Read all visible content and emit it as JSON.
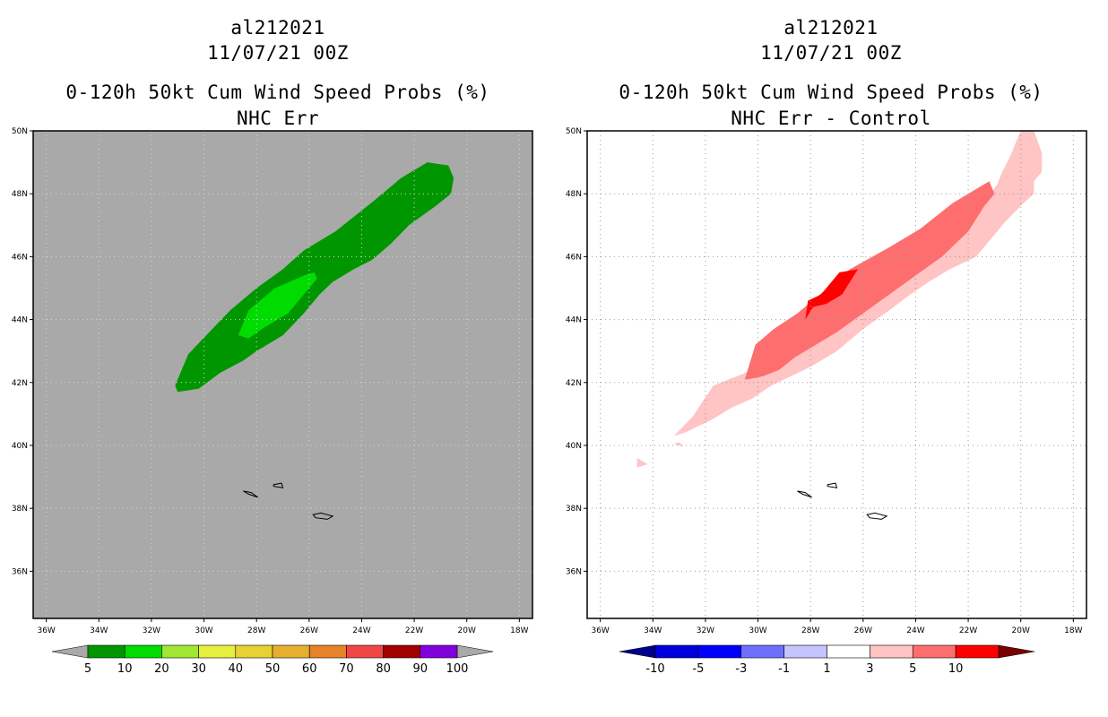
{
  "colors": {
    "background": "#ffffff",
    "map_gray": "#a9a9a9",
    "prob_dark_green": "#009600",
    "prob_bright_green": "#00dc00",
    "diff_light_pink": "#ffc4c4",
    "diff_salmon": "#ff6e6e",
    "diff_red": "#ff0000",
    "diff_dark_red": "#b40000"
  },
  "chart_data": [
    {
      "type": "heatmap",
      "storm_id": "al212021",
      "datetime": "11/07/21 00Z",
      "title": "0-120h 50kt Cum Wind Speed Probs (%)",
      "subtitle": "NHC Err",
      "x_ticks": [
        "36W",
        "34W",
        "32W",
        "30W",
        "28W",
        "26W",
        "24W",
        "22W",
        "20W",
        "18W"
      ],
      "y_ticks": [
        "36N",
        "38N",
        "40N",
        "42N",
        "44N",
        "46N",
        "48N",
        "50N"
      ],
      "xlim_deg_w": [
        36.5,
        17.5
      ],
      "ylim_deg_n": [
        34.5,
        50
      ],
      "grid": false,
      "colorbar": {
        "labels": [
          "5",
          "10",
          "20",
          "30",
          "40",
          "50",
          "60",
          "70",
          "80",
          "90",
          "100"
        ],
        "colors": [
          "#009600",
          "#00dc00",
          "#a0e632",
          "#e6f03c",
          "#e6d232",
          "#e6af2d",
          "#e68228",
          "#f04646",
          "#a00000",
          "#8200dc"
        ],
        "under_color": "#a9a9a9",
        "over_color": "#a9a9a9"
      },
      "contours": [
        {
          "level": "5-10",
          "color": "#009600",
          "lon": [
            31.1,
            30.6,
            29.8,
            29.0,
            28.0,
            27.0,
            26.2,
            25.0,
            23.5,
            22.5,
            21.5,
            20.7,
            20.5,
            20.6,
            21.2,
            22.2,
            22.9,
            23.6,
            24.3,
            25.1,
            25.6,
            26.2,
            27.0,
            28.0,
            28.5,
            29.4,
            30.2,
            31.0
          ],
          "lat": [
            41.9,
            42.9,
            43.6,
            44.3,
            45.0,
            45.6,
            46.2,
            46.8,
            47.8,
            48.5,
            49.0,
            48.9,
            48.5,
            48.0,
            47.6,
            47.0,
            46.4,
            45.9,
            45.6,
            45.2,
            44.8,
            44.2,
            43.5,
            43.0,
            42.7,
            42.3,
            41.8,
            41.7
          ]
        },
        {
          "level": "10-20",
          "color": "#00dc00",
          "lon": [
            28.7,
            28.3,
            27.3,
            26.2,
            25.8,
            25.7,
            26.2,
            26.8,
            27.8,
            28.3
          ],
          "lat": [
            43.5,
            44.3,
            45.0,
            45.4,
            45.5,
            45.3,
            44.8,
            44.2,
            43.7,
            43.4
          ]
        }
      ],
      "coastlines": [
        {
          "lon": [
            28.5,
            28.3,
            27.95,
            28.2,
            28.5
          ],
          "lat": [
            38.55,
            38.45,
            38.35,
            38.5,
            38.55
          ]
        },
        {
          "lon": [
            27.35,
            27.05,
            27.0,
            27.35
          ],
          "lat": [
            38.75,
            38.8,
            38.65,
            38.7
          ]
        },
        {
          "lon": [
            25.85,
            25.55,
            25.1,
            25.3,
            25.75,
            25.85
          ],
          "lat": [
            37.8,
            37.85,
            37.75,
            37.65,
            37.7,
            37.8
          ]
        }
      ]
    },
    {
      "type": "heatmap",
      "storm_id": "al212021",
      "datetime": "11/07/21 00Z",
      "title": "0-120h 50kt Cum Wind Speed Probs (%)",
      "subtitle": "NHC Err - Control",
      "x_ticks": [
        "36W",
        "34W",
        "32W",
        "30W",
        "28W",
        "26W",
        "24W",
        "22W",
        "20W",
        "18W"
      ],
      "y_ticks": [
        "36N",
        "38N",
        "40N",
        "42N",
        "44N",
        "46N",
        "48N",
        "50N"
      ],
      "xlim_deg_w": [
        36.5,
        17.5
      ],
      "ylim_deg_n": [
        34.5,
        50
      ],
      "grid": true,
      "colorbar": {
        "labels": [
          "-10",
          "-5",
          "-3",
          "-1",
          "1",
          "3",
          "5",
          "10"
        ],
        "colors": [
          "#0000dc",
          "#0000ff",
          "#6e6eff",
          "#c4c4ff",
          "#ffffff",
          "#ffc4c4",
          "#ff6e6e",
          "#ff0000"
        ],
        "under_color": "#00008c",
        "over_color": "#780000"
      },
      "contours": [
        {
          "level": "1-3",
          "color": "#ffc4c4",
          "lon": [
            33.2,
            32.5,
            31.7,
            30.5,
            29.8,
            29.0,
            28.0,
            27.0,
            25.5,
            24.5,
            23.8,
            23.2,
            22.7,
            21.9,
            21.3,
            20.9,
            20.7,
            20.4,
            20.2,
            20.0,
            19.5,
            19.2,
            19.2,
            19.5,
            19.5,
            19.9,
            20.6,
            21.2,
            21.7,
            22.2,
            22.7,
            23.1,
            23.5,
            24.2,
            25.0,
            26.0,
            27.0,
            28.0,
            29.0,
            29.5,
            30.2,
            31.0,
            31.8,
            32.3,
            32.8,
            33.2
          ],
          "lat": [
            40.3,
            40.9,
            41.9,
            42.3,
            42.7,
            43.4,
            44.0,
            44.5,
            45.0,
            45.2,
            45.6,
            46.2,
            46.8,
            47.3,
            47.8,
            48.3,
            48.7,
            49.2,
            49.6,
            50.0,
            50.0,
            49.3,
            48.7,
            48.4,
            48.0,
            47.7,
            47.1,
            46.5,
            46.0,
            45.8,
            45.6,
            45.4,
            45.2,
            44.8,
            44.3,
            43.7,
            43.0,
            42.5,
            42.1,
            41.9,
            41.5,
            41.2,
            40.8,
            40.6,
            40.4,
            40.3
          ]
        },
        {
          "level": "1-3",
          "color": "#ffc4c4",
          "lon": [
            34.6,
            34.2,
            34.6
          ],
          "lat": [
            39.6,
            39.4,
            39.3
          ]
        },
        {
          "level": "1-3",
          "color": "#ffc4c4",
          "lon": [
            33.2,
            32.8,
            33.0
          ],
          "lat": [
            40.05,
            39.95,
            40.1
          ]
        },
        {
          "level": "3-5",
          "color": "#ff6e6e",
          "lon": [
            30.5,
            30.1,
            29.4,
            28.5,
            27.5,
            26.5,
            25.0,
            23.8,
            22.6,
            21.8,
            21.2,
            21.0,
            21.4,
            22.0,
            23.0,
            24.0,
            25.0,
            26.0,
            27.0,
            28.0,
            28.6,
            29.2,
            29.8,
            30.4
          ],
          "lat": [
            42.1,
            43.2,
            43.7,
            44.2,
            44.9,
            45.6,
            46.3,
            46.9,
            47.7,
            48.1,
            48.4,
            48.0,
            47.6,
            46.8,
            46.0,
            45.4,
            44.8,
            44.2,
            43.6,
            43.1,
            42.8,
            42.4,
            42.2,
            42.1
          ]
        },
        {
          "level": "5-10",
          "color": "#ff0000",
          "lon": [
            28.2,
            28.1,
            27.6,
            26.9,
            26.2,
            26.8,
            27.4,
            27.9,
            28.2
          ],
          "lat": [
            44.0,
            44.6,
            44.8,
            45.5,
            45.6,
            44.8,
            44.5,
            44.4,
            44.0
          ]
        }
      ],
      "coastlines": [
        {
          "lon": [
            28.5,
            28.3,
            27.95,
            28.2,
            28.5
          ],
          "lat": [
            38.55,
            38.45,
            38.35,
            38.5,
            38.55
          ]
        },
        {
          "lon": [
            27.35,
            27.05,
            27.0,
            27.35
          ],
          "lat": [
            38.75,
            38.8,
            38.65,
            38.7
          ]
        },
        {
          "lon": [
            25.85,
            25.55,
            25.1,
            25.3,
            25.75,
            25.85
          ],
          "lat": [
            37.8,
            37.85,
            37.75,
            37.65,
            37.7,
            37.8
          ]
        }
      ]
    }
  ]
}
